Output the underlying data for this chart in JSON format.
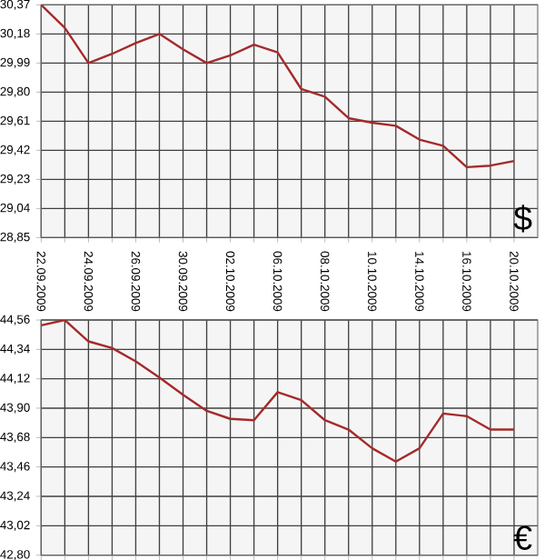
{
  "chart_data": [
    {
      "type": "line",
      "categories": [
        "22.09.2009",
        null,
        "24.09.2009",
        null,
        "26.09.2009",
        null,
        "30.09.2009",
        null,
        "02.10.2009",
        null,
        "06.10.2009",
        null,
        "08.10.2009",
        null,
        "10.10.2009",
        null,
        "14.10.2009",
        null,
        "16.10.2009",
        null,
        "20.10.2009"
      ],
      "series": [
        {
          "color": "#a52a2a",
          "values": [
            30.37,
            30.22,
            29.99,
            30.05,
            30.12,
            30.18,
            30.08,
            29.99,
            30.04,
            30.11,
            30.06,
            29.82,
            29.77,
            29.63,
            29.6,
            29.58,
            29.49,
            29.45,
            29.31,
            29.32,
            29.35
          ]
        }
      ],
      "ylim": [
        28.85,
        30.37
      ],
      "yticks": [
        {
          "value": 28.85,
          "label": "28,85"
        },
        {
          "value": 29.04,
          "label": "29,04"
        },
        {
          "value": 29.23,
          "label": "29,23"
        },
        {
          "value": 29.42,
          "label": "29,42"
        },
        {
          "value": 29.61,
          "label": "29,61"
        },
        {
          "value": 29.8,
          "label": "29,80"
        },
        {
          "value": 29.99,
          "label": "29,99"
        },
        {
          "value": 30.18,
          "label": "30,18"
        },
        {
          "value": 30.37,
          "label": "30,37"
        }
      ],
      "grid": true,
      "annotations": [
        "$"
      ]
    },
    {
      "type": "line",
      "categories": [
        null,
        null,
        null,
        null,
        null,
        null,
        null,
        null,
        null,
        null,
        null,
        null,
        null,
        null,
        null,
        null,
        null,
        null,
        null,
        null,
        null
      ],
      "series": [
        {
          "color": "#a52a2a",
          "values": [
            44.52,
            44.56,
            44.4,
            44.35,
            44.25,
            44.13,
            44.0,
            43.88,
            43.82,
            43.81,
            44.02,
            43.96,
            43.81,
            43.74,
            43.6,
            43.5,
            43.6,
            43.86,
            43.84,
            43.74,
            43.74
          ]
        }
      ],
      "ylim": [
        42.8,
        44.56
      ],
      "yticks": [
        {
          "value": 42.8,
          "label": "42,80"
        },
        {
          "value": 43.02,
          "label": "43,02"
        },
        {
          "value": 43.24,
          "label": "43,24"
        },
        {
          "value": 43.46,
          "label": "43,46"
        },
        {
          "value": 43.68,
          "label": "43,68"
        },
        {
          "value": 43.9,
          "label": "43,90"
        },
        {
          "value": 44.12,
          "label": "44,12"
        },
        {
          "value": 44.34,
          "label": "44,34"
        },
        {
          "value": 44.56,
          "label": "44,56"
        }
      ],
      "grid": true,
      "tick_labels": "y",
      "annotations": [
        "€"
      ]
    }
  ]
}
